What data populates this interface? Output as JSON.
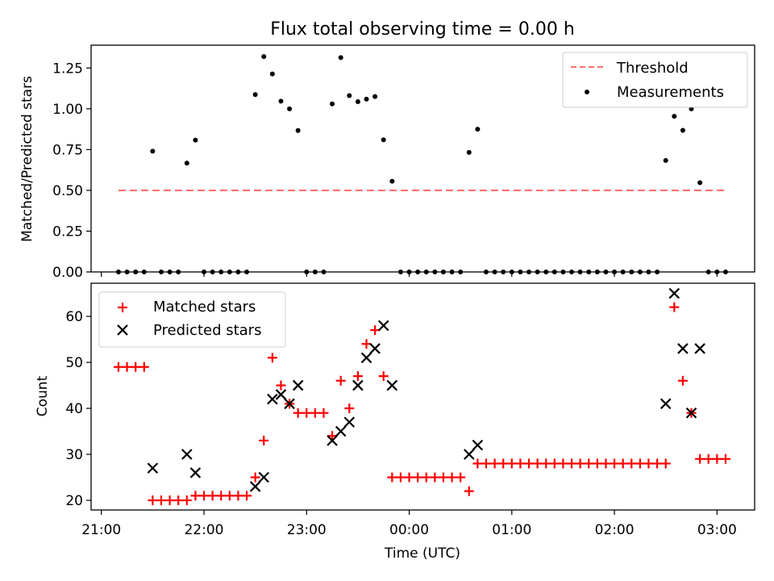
{
  "title": "Flux total observing time = 0.00 h",
  "chart_data": [
    {
      "type": "scatter",
      "ylabel": "Matched/Predicted stars",
      "xlabel": "",
      "xlim": [
        "20:54",
        "03:22"
      ],
      "ylim": [
        0,
        1.39
      ],
      "yticks": [
        0,
        0.25,
        0.5,
        0.75,
        1.0,
        1.25
      ],
      "ytick_labels": [
        "0.00",
        "0.25",
        "0.50",
        "0.75",
        "1.00",
        "1.25"
      ],
      "legend_position": "top-right",
      "threshold": {
        "name": "Threshold",
        "value": 0.5,
        "x_range": [
          "21:10",
          "03:05"
        ],
        "color": "#ff7070",
        "style": "dashed"
      },
      "series": [
        {
          "name": "Measurements",
          "color": "#000000",
          "marker": "dot",
          "points": [
            [
              "21:10",
              0
            ],
            [
              "21:15",
              0
            ],
            [
              "21:20",
              0
            ],
            [
              "21:25",
              0
            ],
            [
              "21:30",
              0.74
            ],
            [
              "21:35",
              0
            ],
            [
              "21:40",
              0
            ],
            [
              "21:45",
              0
            ],
            [
              "21:50",
              0.667
            ],
            [
              "21:55",
              0.808
            ],
            [
              "22:00",
              0
            ],
            [
              "22:05",
              0
            ],
            [
              "22:10",
              0
            ],
            [
              "22:15",
              0
            ],
            [
              "22:20",
              0
            ],
            [
              "22:25",
              0
            ],
            [
              "22:30",
              1.087
            ],
            [
              "22:35",
              1.32
            ],
            [
              "22:40",
              1.214
            ],
            [
              "22:45",
              1.047
            ],
            [
              "22:50",
              1.0
            ],
            [
              "22:55",
              0.867
            ],
            [
              "23:00",
              0
            ],
            [
              "23:05",
              0
            ],
            [
              "23:10",
              0
            ],
            [
              "23:15",
              1.03
            ],
            [
              "23:20",
              1.314
            ],
            [
              "23:25",
              1.081
            ],
            [
              "23:30",
              1.044
            ],
            [
              "23:35",
              1.059
            ],
            [
              "23:40",
              1.075
            ],
            [
              "23:45",
              0.81
            ],
            [
              "23:50",
              0.556
            ],
            [
              "23:55",
              0
            ],
            [
              "00:00",
              0
            ],
            [
              "00:05",
              0
            ],
            [
              "00:10",
              0
            ],
            [
              "00:15",
              0
            ],
            [
              "00:20",
              0
            ],
            [
              "00:25",
              0
            ],
            [
              "00:30",
              0
            ],
            [
              "00:35",
              0.733
            ],
            [
              "00:40",
              0.875
            ],
            [
              "00:45",
              0
            ],
            [
              "00:50",
              0
            ],
            [
              "00:55",
              0
            ],
            [
              "01:00",
              0
            ],
            [
              "01:05",
              0
            ],
            [
              "01:10",
              0
            ],
            [
              "01:15",
              0
            ],
            [
              "01:20",
              0
            ],
            [
              "01:25",
              0
            ],
            [
              "01:30",
              0
            ],
            [
              "01:35",
              0
            ],
            [
              "01:40",
              0
            ],
            [
              "01:45",
              0
            ],
            [
              "01:50",
              0
            ],
            [
              "01:55",
              0
            ],
            [
              "02:00",
              0
            ],
            [
              "02:05",
              0
            ],
            [
              "02:10",
              0
            ],
            [
              "02:15",
              0
            ],
            [
              "02:20",
              0
            ],
            [
              "02:25",
              0
            ],
            [
              "02:30",
              0.683
            ],
            [
              "02:35",
              0.954
            ],
            [
              "02:40",
              0.868
            ],
            [
              "02:45",
              1.0
            ],
            [
              "02:50",
              0.547
            ],
            [
              "02:55",
              0
            ],
            [
              "03:00",
              0
            ],
            [
              "03:05",
              0
            ]
          ]
        }
      ]
    },
    {
      "type": "scatter",
      "ylabel": "Count",
      "xlabel": "Time (UTC)",
      "xlim": [
        "20:54",
        "03:22"
      ],
      "ylim": [
        17.9,
        67.2
      ],
      "yticks": [
        20,
        30,
        40,
        50,
        60
      ],
      "ytick_labels": [
        "20",
        "30",
        "40",
        "50",
        "60"
      ],
      "xticks": [
        "21:00",
        "22:00",
        "23:00",
        "00:00",
        "01:00",
        "02:00",
        "03:00"
      ],
      "legend_position": "top-left",
      "series": [
        {
          "name": "Matched stars",
          "color": "#ff0000",
          "marker": "plus",
          "points": [
            [
              "21:10",
              49
            ],
            [
              "21:15",
              49
            ],
            [
              "21:20",
              49
            ],
            [
              "21:25",
              49
            ],
            [
              "21:30",
              20
            ],
            [
              "21:35",
              20
            ],
            [
              "21:40",
              20
            ],
            [
              "21:45",
              20
            ],
            [
              "21:50",
              20
            ],
            [
              "21:55",
              21
            ],
            [
              "22:00",
              21
            ],
            [
              "22:05",
              21
            ],
            [
              "22:10",
              21
            ],
            [
              "22:15",
              21
            ],
            [
              "22:20",
              21
            ],
            [
              "22:25",
              21
            ],
            [
              "22:30",
              25
            ],
            [
              "22:35",
              33
            ],
            [
              "22:40",
              51
            ],
            [
              "22:45",
              45
            ],
            [
              "22:50",
              41
            ],
            [
              "22:55",
              39
            ],
            [
              "23:00",
              39
            ],
            [
              "23:05",
              39
            ],
            [
              "23:10",
              39
            ],
            [
              "23:15",
              34
            ],
            [
              "23:20",
              46
            ],
            [
              "23:25",
              40
            ],
            [
              "23:30",
              47
            ],
            [
              "23:35",
              54
            ],
            [
              "23:40",
              57
            ],
            [
              "23:45",
              47
            ],
            [
              "23:50",
              25
            ],
            [
              "23:55",
              25
            ],
            [
              "00:00",
              25
            ],
            [
              "00:05",
              25
            ],
            [
              "00:10",
              25
            ],
            [
              "00:15",
              25
            ],
            [
              "00:20",
              25
            ],
            [
              "00:25",
              25
            ],
            [
              "00:30",
              25
            ],
            [
              "00:35",
              22
            ],
            [
              "00:40",
              28
            ],
            [
              "00:45",
              28
            ],
            [
              "00:50",
              28
            ],
            [
              "00:55",
              28
            ],
            [
              "01:00",
              28
            ],
            [
              "01:05",
              28
            ],
            [
              "01:10",
              28
            ],
            [
              "01:15",
              28
            ],
            [
              "01:20",
              28
            ],
            [
              "01:25",
              28
            ],
            [
              "01:30",
              28
            ],
            [
              "01:35",
              28
            ],
            [
              "01:40",
              28
            ],
            [
              "01:45",
              28
            ],
            [
              "01:50",
              28
            ],
            [
              "01:55",
              28
            ],
            [
              "02:00",
              28
            ],
            [
              "02:05",
              28
            ],
            [
              "02:10",
              28
            ],
            [
              "02:15",
              28
            ],
            [
              "02:20",
              28
            ],
            [
              "02:25",
              28
            ],
            [
              "02:30",
              28
            ],
            [
              "02:35",
              62
            ],
            [
              "02:40",
              46
            ],
            [
              "02:45",
              39
            ],
            [
              "02:50",
              29
            ],
            [
              "02:55",
              29
            ],
            [
              "03:00",
              29
            ],
            [
              "03:05",
              29
            ]
          ]
        },
        {
          "name": "Predicted stars",
          "color": "#000000",
          "marker": "x",
          "points": [
            [
              "21:30",
              27
            ],
            [
              "21:50",
              30
            ],
            [
              "21:55",
              26
            ],
            [
              "22:30",
              23
            ],
            [
              "22:35",
              25
            ],
            [
              "22:40",
              42
            ],
            [
              "22:45",
              43
            ],
            [
              "22:50",
              41
            ],
            [
              "22:55",
              45
            ],
            [
              "23:15",
              33
            ],
            [
              "23:20",
              35
            ],
            [
              "23:25",
              37
            ],
            [
              "23:30",
              45
            ],
            [
              "23:35",
              51
            ],
            [
              "23:40",
              53
            ],
            [
              "23:45",
              58
            ],
            [
              "23:50",
              45
            ],
            [
              "00:35",
              30
            ],
            [
              "00:40",
              32
            ],
            [
              "02:30",
              41
            ],
            [
              "02:35",
              65
            ],
            [
              "02:40",
              53
            ],
            [
              "02:45",
              39
            ],
            [
              "02:50",
              53
            ]
          ]
        }
      ]
    }
  ]
}
